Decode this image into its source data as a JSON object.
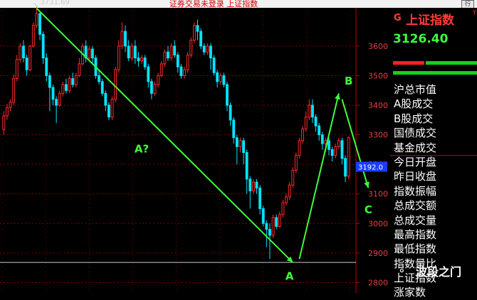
{
  "window": {
    "title": "证券交易未登录   上证指数",
    "right_button": "行"
  },
  "panel": {
    "marker": "G",
    "name": "上证指数",
    "name_sup": "Y",
    "price": "3126.40",
    "items": [
      "沪总市值",
      "A股成交",
      "B股成交",
      "国债成交",
      "基金成交",
      "今日开盘",
      "昨日收盘",
      "指数振幅",
      "总成交额",
      "总成交量",
      "最高指数",
      "最低指数",
      "指数量比",
      "上证指数",
      "涨家数"
    ]
  },
  "watermark": {
    "icon": "wechat-icon",
    "text": "波段之门"
  },
  "colors": {
    "up": "#ff2a2a",
    "down": "#00e5ff",
    "trend": "#3cff3c",
    "grid": "#800000",
    "axis": "#c00000"
  },
  "chart_data": {
    "type": "candlestick",
    "y_ticks": [
      "3600",
      "3500",
      "3400",
      "3300",
      "3200",
      "3100",
      "3000",
      "2900",
      "2800"
    ],
    "ylim": [
      2765,
      3720
    ],
    "current_price_label": "3192.0",
    "current_price": 3192,
    "peak_label": "3731.69",
    "peak_value": 3731.69,
    "ref_line": 2868,
    "candles": [
      [
        3318,
        3364,
        3380,
        3300
      ],
      [
        3364,
        3392,
        3405,
        3350
      ],
      [
        3392,
        3410,
        3420,
        3380
      ],
      [
        3410,
        3490,
        3505,
        3400
      ],
      [
        3490,
        3555,
        3570,
        3480
      ],
      [
        3555,
        3600,
        3610,
        3545
      ],
      [
        3600,
        3560,
        3620,
        3545
      ],
      [
        3560,
        3520,
        3570,
        3500
      ],
      [
        3520,
        3600,
        3605,
        3515
      ],
      [
        3600,
        3670,
        3680,
        3595
      ],
      [
        3670,
        3710,
        3732,
        3660
      ],
      [
        3710,
        3640,
        3715,
        3620
      ],
      [
        3640,
        3560,
        3650,
        3540
      ],
      [
        3560,
        3500,
        3575,
        3480
      ],
      [
        3500,
        3460,
        3510,
        3380
      ],
      [
        3460,
        3420,
        3470,
        3400
      ],
      [
        3420,
        3400,
        3430,
        3340
      ],
      [
        3400,
        3440,
        3450,
        3395
      ],
      [
        3440,
        3470,
        3480,
        3430
      ],
      [
        3470,
        3450,
        3490,
        3440
      ],
      [
        3450,
        3490,
        3500,
        3440
      ],
      [
        3490,
        3470,
        3510,
        3460
      ],
      [
        3470,
        3500,
        3510,
        3460
      ],
      [
        3500,
        3540,
        3560,
        3495
      ],
      [
        3540,
        3600,
        3610,
        3535
      ],
      [
        3600,
        3560,
        3620,
        3545
      ],
      [
        3560,
        3590,
        3600,
        3550
      ],
      [
        3590,
        3560,
        3600,
        3540
      ],
      [
        3560,
        3500,
        3570,
        3490
      ],
      [
        3500,
        3480,
        3520,
        3470
      ],
      [
        3480,
        3440,
        3490,
        3430
      ],
      [
        3440,
        3400,
        3450,
        3380
      ],
      [
        3400,
        3360,
        3410,
        3350
      ],
      [
        3360,
        3420,
        3430,
        3350
      ],
      [
        3420,
        3520,
        3530,
        3410
      ],
      [
        3520,
        3600,
        3620,
        3510
      ],
      [
        3600,
        3650,
        3680,
        3590
      ],
      [
        3650,
        3600,
        3670,
        3580
      ],
      [
        3600,
        3560,
        3620,
        3550
      ],
      [
        3560,
        3600,
        3610,
        3550
      ],
      [
        3600,
        3560,
        3620,
        3540
      ],
      [
        3560,
        3550,
        3580,
        3530
      ],
      [
        3550,
        3560,
        3570,
        3540
      ],
      [
        3560,
        3530,
        3570,
        3520
      ],
      [
        3530,
        3480,
        3540,
        3460
      ],
      [
        3480,
        3440,
        3490,
        3420
      ],
      [
        3440,
        3470,
        3480,
        3430
      ],
      [
        3470,
        3500,
        3510,
        3460
      ],
      [
        3500,
        3540,
        3550,
        3495
      ],
      [
        3540,
        3580,
        3590,
        3530
      ],
      [
        3580,
        3560,
        3600,
        3550
      ],
      [
        3560,
        3600,
        3610,
        3550
      ],
      [
        3600,
        3570,
        3620,
        3560
      ],
      [
        3570,
        3530,
        3580,
        3510
      ],
      [
        3530,
        3500,
        3540,
        3490
      ],
      [
        3500,
        3520,
        3530,
        3490
      ],
      [
        3520,
        3570,
        3580,
        3510
      ],
      [
        3570,
        3620,
        3630,
        3560
      ],
      [
        3620,
        3670,
        3680,
        3610
      ],
      [
        3670,
        3650,
        3690,
        3620
      ],
      [
        3650,
        3600,
        3660,
        3590
      ],
      [
        3600,
        3580,
        3610,
        3570
      ],
      [
        3580,
        3600,
        3610,
        3570
      ],
      [
        3600,
        3560,
        3610,
        3520
      ],
      [
        3560,
        3510,
        3570,
        3500
      ],
      [
        3510,
        3480,
        3520,
        3460
      ],
      [
        3480,
        3500,
        3510,
        3470
      ],
      [
        3500,
        3470,
        3510,
        3460
      ],
      [
        3470,
        3400,
        3480,
        3380
      ],
      [
        3400,
        3350,
        3410,
        3330
      ],
      [
        3350,
        3290,
        3360,
        3270
      ],
      [
        3290,
        3260,
        3300,
        3200
      ],
      [
        3260,
        3280,
        3290,
        3240
      ],
      [
        3280,
        3240,
        3290,
        3200
      ],
      [
        3240,
        3150,
        3250,
        3100
      ],
      [
        3150,
        3110,
        3160,
        3050
      ],
      [
        3110,
        3140,
        3150,
        3100
      ],
      [
        3140,
        3120,
        3150,
        3100
      ],
      [
        3120,
        3050,
        3130,
        3030
      ],
      [
        3050,
        3000,
        3060,
        2990
      ],
      [
        3000,
        2980,
        3010,
        2920
      ],
      [
        2980,
        2960,
        3000,
        2880
      ],
      [
        2960,
        3020,
        3030,
        2950
      ],
      [
        3020,
        2990,
        3030,
        2980
      ],
      [
        2990,
        3030,
        3040,
        2985
      ],
      [
        3030,
        3070,
        3080,
        3020
      ],
      [
        3070,
        3090,
        3100,
        3060
      ],
      [
        3090,
        3130,
        3140,
        3080
      ],
      [
        3130,
        3180,
        3190,
        3120
      ],
      [
        3180,
        3230,
        3240,
        3170
      ],
      [
        3230,
        3280,
        3290,
        3220
      ],
      [
        3280,
        3320,
        3330,
        3270
      ],
      [
        3320,
        3360,
        3380,
        3310
      ],
      [
        3360,
        3400,
        3420,
        3350
      ],
      [
        3400,
        3360,
        3420,
        3340
      ],
      [
        3360,
        3330,
        3370,
        3310
      ],
      [
        3330,
        3300,
        3340,
        3280
      ],
      [
        3300,
        3270,
        3310,
        3250
      ],
      [
        3270,
        3280,
        3290,
        3240
      ],
      [
        3280,
        3250,
        3290,
        3230
      ],
      [
        3250,
        3230,
        3260,
        3210
      ],
      [
        3230,
        3260,
        3270,
        3220
      ],
      [
        3260,
        3280,
        3290,
        3250
      ],
      [
        3280,
        3220,
        3290,
        3200
      ],
      [
        3220,
        3160,
        3230,
        3140
      ],
      [
        3160,
        3290,
        3295,
        3150
      ]
    ],
    "annotations": [
      {
        "label": "A?",
        "x": 42,
        "y": 3240
      },
      {
        "label": "B",
        "x": 105,
        "y": 3470
      },
      {
        "label": "C",
        "x": 111,
        "y": 3035
      },
      {
        "label": "A",
        "x": 87,
        "y": 2810
      }
    ],
    "trendlines": [
      {
        "x1": 10,
        "y1": 3728,
        "x2": 88,
        "y2": 2868
      },
      {
        "x1": 90,
        "y1": 2880,
        "x2": 102,
        "y2": 3440
      },
      {
        "x1": 103,
        "y1": 3420,
        "x2": 111,
        "y2": 3120
      }
    ]
  }
}
